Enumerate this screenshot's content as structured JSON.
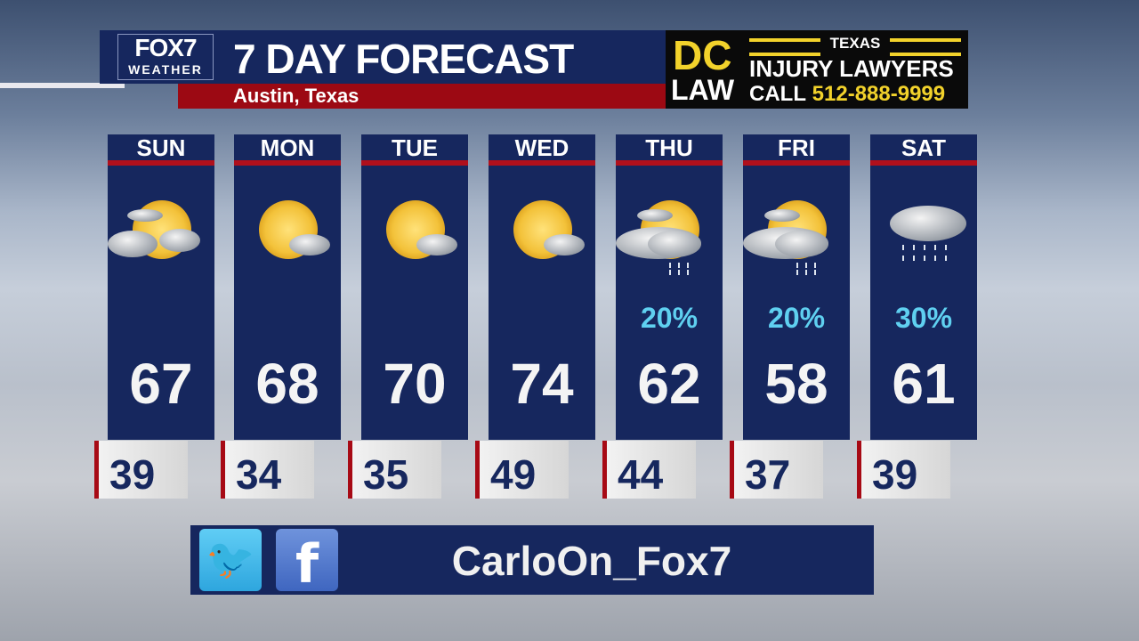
{
  "header": {
    "logo_top": "FOX7",
    "logo_bottom": "WEATHER",
    "title": "7 DAY FORECAST",
    "location": "Austin, Texas"
  },
  "ad": {
    "dc": "DC",
    "law": "LAW",
    "state": "TEXAS",
    "line1": "INJURY LAWYERS",
    "call": "CALL",
    "phone": "512-888-9999"
  },
  "days": [
    {
      "day": "SUN",
      "hi": "67",
      "lo": "39",
      "pop": "",
      "icon": "partly-cloudy-icon"
    },
    {
      "day": "MON",
      "hi": "68",
      "lo": "34",
      "pop": "",
      "icon": "mostly-sunny-icon"
    },
    {
      "day": "TUE",
      "hi": "70",
      "lo": "35",
      "pop": "",
      "icon": "mostly-sunny-icon"
    },
    {
      "day": "WED",
      "hi": "74",
      "lo": "49",
      "pop": "",
      "icon": "mostly-sunny-icon"
    },
    {
      "day": "THU",
      "hi": "62",
      "lo": "44",
      "pop": "20%",
      "icon": "partly-cloudy-showers-icon"
    },
    {
      "day": "FRI",
      "hi": "58",
      "lo": "37",
      "pop": "20%",
      "icon": "partly-cloudy-showers-icon"
    },
    {
      "day": "SAT",
      "hi": "61",
      "lo": "39",
      "pop": "30%",
      "icon": "cloudy-rain-icon"
    }
  ],
  "social": {
    "handle": "CarloOn_Fox7",
    "twitter_glyph": "🐦",
    "facebook_glyph": "f"
  },
  "colors": {
    "navy": "#16275e",
    "red": "#a70a15",
    "pop": "#5fd0f0",
    "ad_yellow": "#f2d22b"
  }
}
